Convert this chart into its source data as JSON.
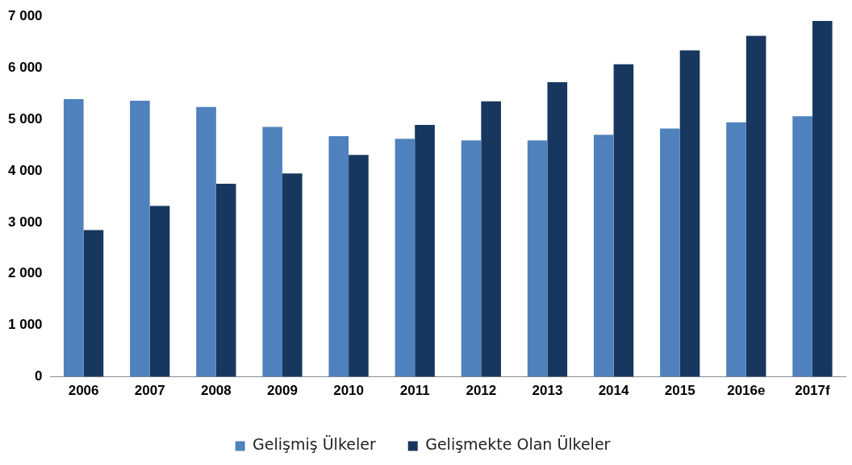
{
  "chart_data": {
    "type": "bar",
    "categories": [
      "2006",
      "2007",
      "2008",
      "2009",
      "2010",
      "2011",
      "2012",
      "2013",
      "2014",
      "2015",
      "2016e",
      "2017f"
    ],
    "series": [
      {
        "name": "Gelişmiş Ülkeler",
        "color": "#4f81bd",
        "values": [
          5390,
          5360,
          5240,
          4850,
          4670,
          4620,
          4590,
          4590,
          4700,
          4820,
          4940,
          5060
        ]
      },
      {
        "name": "Gelişmekte Olan Ülkeler",
        "color": "#17375e",
        "values": [
          2850,
          3320,
          3750,
          3950,
          4310,
          4890,
          5350,
          5720,
          6070,
          6340,
          6620,
          6910
        ]
      }
    ],
    "ylim": [
      0,
      7000
    ],
    "yticks": [
      {
        "value": 0,
        "label": "0"
      },
      {
        "value": 1000,
        "label": "1 000"
      },
      {
        "value": 2000,
        "label": "2 000"
      },
      {
        "value": 3000,
        "label": "3 000"
      },
      {
        "value": 4000,
        "label": "4 000"
      },
      {
        "value": 5000,
        "label": "5 000"
      },
      {
        "value": 6000,
        "label": "6 000"
      },
      {
        "value": 7000,
        "label": "7 000"
      }
    ],
    "grid": false,
    "legend": "bottom"
  }
}
